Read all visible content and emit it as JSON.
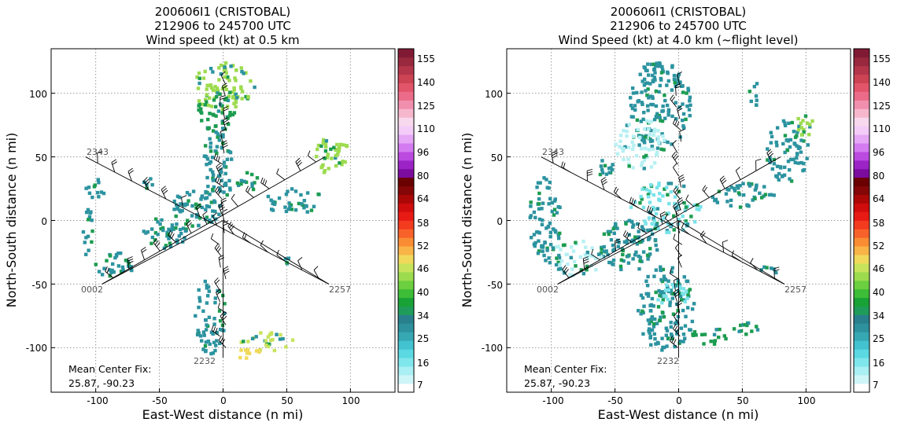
{
  "colors": {
    "colorbar": [
      "#ffffff",
      "#cef5f7",
      "#a9eff3",
      "#7fe6ec",
      "#5bd9e2",
      "#43c2cf",
      "#36a8b4",
      "#2d919e",
      "#27808c",
      "#1f9b5a",
      "#19a236",
      "#3dbd38",
      "#6ccf3f",
      "#9ddb4e",
      "#c7e35c",
      "#f0d95a",
      "#f8b447",
      "#fa8c34",
      "#f8622a",
      "#f23b1f",
      "#e81a14",
      "#d00c0c",
      "#ac0707",
      "#840606",
      "#6a0000",
      "#7b0c9e",
      "#9c24c7",
      "#bb4ae0",
      "#d27cf0",
      "#e5a7f6",
      "#f3ccf8",
      "#f8d8ec",
      "#f6b7cd",
      "#f18fae",
      "#ec6b88",
      "#e2546a",
      "#cc4353",
      "#b2354a",
      "#98283e",
      "#801a34"
    ],
    "rain_teal": "#2c93a0",
    "rain_cyan": "#7ae3ea",
    "rain_lightcyan": "#b6f0f3",
    "rain_green": "#1c9c50",
    "rain_lime": "#9ddb4e",
    "rain_yellowgreen": "#c7e35c",
    "rain_yellow": "#f0d95a"
  },
  "legs": [
    {
      "label": "2343",
      "start": [
        -108,
        50
      ],
      "end": [
        83,
        -50
      ]
    },
    {
      "label": "0002",
      "start": [
        -95,
        -50
      ],
      "end": [
        80,
        50
      ]
    },
    {
      "label": "2257",
      "start": [
        83,
        -50
      ],
      "end": [
        0,
        0
      ]
    },
    {
      "label": "2232",
      "start": [
        0,
        -108
      ],
      "end": [
        0,
        0
      ]
    }
  ],
  "chart_data": [
    {
      "type": "heatmap",
      "title": "200606I1 (CRISTOBAL)",
      "subtitle": "212906 to 245700 UTC",
      "subtitle2": "Wind speed (kt) at 0.5 km",
      "xlabel": "East-West distance (n mi)",
      "ylabel": "North-South distance (n mi)",
      "xlim": [
        -135,
        135
      ],
      "ylim": [
        -135,
        135
      ],
      "xticks": [
        "-100",
        "-50",
        "0",
        "50",
        "100"
      ],
      "yticks": [
        "-100",
        "-50",
        "0",
        "50",
        "100"
      ],
      "grid": true,
      "colorbar_ticks": [
        "7",
        "16",
        "25",
        "34",
        "40",
        "46",
        "52",
        "58",
        "64",
        "80",
        "96",
        "110",
        "125",
        "140",
        "155"
      ],
      "flight_track_labels": [
        "2343",
        "0002",
        "2257",
        "2232"
      ],
      "annotation_line1": "Mean Center Fix:",
      "annotation_line2": "25.87, -90.23"
    },
    {
      "type": "heatmap",
      "title": "200606I1 (CRISTOBAL)",
      "subtitle": "212906 to 245700 UTC",
      "subtitle2": "Wind Speed (kt) at 4.0 km (~flight level)",
      "xlabel": "East-West distance (n mi)",
      "ylabel": "North-South distance (n mi)",
      "xlim": [
        -135,
        135
      ],
      "ylim": [
        -135,
        135
      ],
      "xticks": [
        "-100",
        "-50",
        "0",
        "50",
        "100"
      ],
      "yticks": [
        "-100",
        "-50",
        "0",
        "50",
        "100"
      ],
      "grid": true,
      "colorbar_ticks": [
        "7",
        "16",
        "25",
        "34",
        "40",
        "46",
        "52",
        "58",
        "64",
        "80",
        "96",
        "110",
        "125",
        "140",
        "155"
      ],
      "flight_track_labels": [
        "2343",
        "0002",
        "2257",
        "2232"
      ],
      "annotation_line1": "Mean Center Fix:",
      "annotation_line2": "25.87, -90.23"
    }
  ]
}
